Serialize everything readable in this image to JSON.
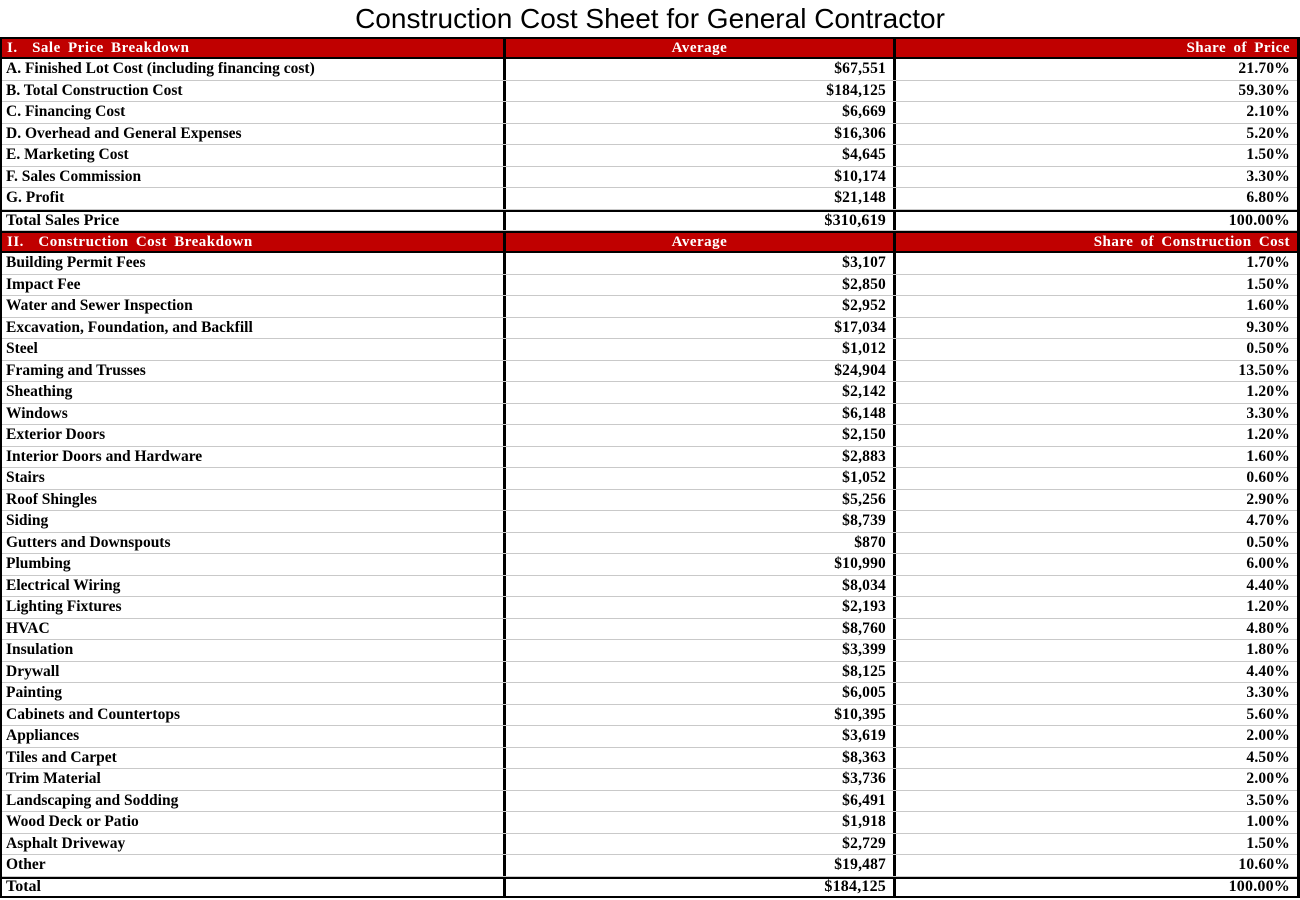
{
  "title": "Construction Cost Sheet for General Contractor",
  "colors": {
    "header_background": "#C00000",
    "header_text": "#FFFFFF",
    "body_text": "#000000",
    "row_divider": "#C9C9C9",
    "column_divider": "#000000"
  },
  "sections": [
    {
      "header": {
        "label": "I.  Sale Price Breakdown",
        "col2": "Average",
        "col3": "Share of Price"
      },
      "rows": [
        {
          "label": "A. Finished Lot Cost (including financing cost)",
          "average": "$67,551",
          "share": "21.70%"
        },
        {
          "label": "B. Total Construction Cost",
          "average": "$184,125",
          "share": "59.30%"
        },
        {
          "label": "C. Financing Cost",
          "average": "$6,669",
          "share": "2.10%"
        },
        {
          "label": "D. Overhead and General Expenses",
          "average": "$16,306",
          "share": "5.20%"
        },
        {
          "label": "E. Marketing Cost",
          "average": "$4,645",
          "share": "1.50%"
        },
        {
          "label": "F. Sales Commission",
          "average": "$10,174",
          "share": "3.30%"
        },
        {
          "label": "G. Profit",
          "average": "$21,148",
          "share": "6.80%"
        },
        {
          "label": "Total Sales Price",
          "average": "$310,619",
          "share": "100.00%",
          "total": true
        }
      ]
    },
    {
      "header": {
        "label": "II.  Construction Cost Breakdown",
        "col2": "Average",
        "col3": "Share of Construction Cost"
      },
      "rows": [
        {
          "label": "Building Permit Fees",
          "average": "$3,107",
          "share": "1.70%"
        },
        {
          "label": "Impact Fee",
          "average": "$2,850",
          "share": "1.50%"
        },
        {
          "label": "Water and Sewer Inspection",
          "average": "$2,952",
          "share": "1.60%"
        },
        {
          "label": "Excavation, Foundation, and Backfill",
          "average": "$17,034",
          "share": "9.30%"
        },
        {
          "label": "Steel",
          "average": "$1,012",
          "share": "0.50%"
        },
        {
          "label": "Framing and Trusses",
          "average": "$24,904",
          "share": "13.50%"
        },
        {
          "label": "Sheathing",
          "average": "$2,142",
          "share": "1.20%"
        },
        {
          "label": "Windows",
          "average": "$6,148",
          "share": "3.30%"
        },
        {
          "label": "Exterior Doors",
          "average": "$2,150",
          "share": "1.20%"
        },
        {
          "label": "Interior Doors and Hardware",
          "average": "$2,883",
          "share": "1.60%"
        },
        {
          "label": "Stairs",
          "average": "$1,052",
          "share": "0.60%"
        },
        {
          "label": "Roof Shingles",
          "average": "$5,256",
          "share": "2.90%"
        },
        {
          "label": "Siding",
          "average": "$8,739",
          "share": "4.70%"
        },
        {
          "label": "Gutters and Downspouts",
          "average": "$870",
          "share": "0.50%"
        },
        {
          "label": "Plumbing",
          "average": "$10,990",
          "share": "6.00%"
        },
        {
          "label": "Electrical Wiring",
          "average": "$8,034",
          "share": "4.40%"
        },
        {
          "label": "Lighting Fixtures",
          "average": "$2,193",
          "share": "1.20%"
        },
        {
          "label": "HVAC",
          "average": "$8,760",
          "share": "4.80%"
        },
        {
          "label": "Insulation",
          "average": "$3,399",
          "share": "1.80%"
        },
        {
          "label": "Drywall",
          "average": "$8,125",
          "share": "4.40%"
        },
        {
          "label": "Painting",
          "average": "$6,005",
          "share": "3.30%"
        },
        {
          "label": "Cabinets and Countertops",
          "average": "$10,395",
          "share": "5.60%"
        },
        {
          "label": "Appliances",
          "average": "$3,619",
          "share": "2.00%"
        },
        {
          "label": "Tiles and Carpet",
          "average": "$8,363",
          "share": "4.50%"
        },
        {
          "label": "Trim Material",
          "average": "$3,736",
          "share": "2.00%"
        },
        {
          "label": "Landscaping and Sodding",
          "average": "$6,491",
          "share": "3.50%"
        },
        {
          "label": "Wood Deck or Patio",
          "average": "$1,918",
          "share": "1.00%"
        },
        {
          "label": "Asphalt Driveway",
          "average": "$2,729",
          "share": "1.50%"
        },
        {
          "label": "Other",
          "average": "$19,487",
          "share": "10.60%"
        },
        {
          "label": "Total",
          "average": "$184,125",
          "share": "100.00%",
          "total": true
        }
      ]
    }
  ]
}
